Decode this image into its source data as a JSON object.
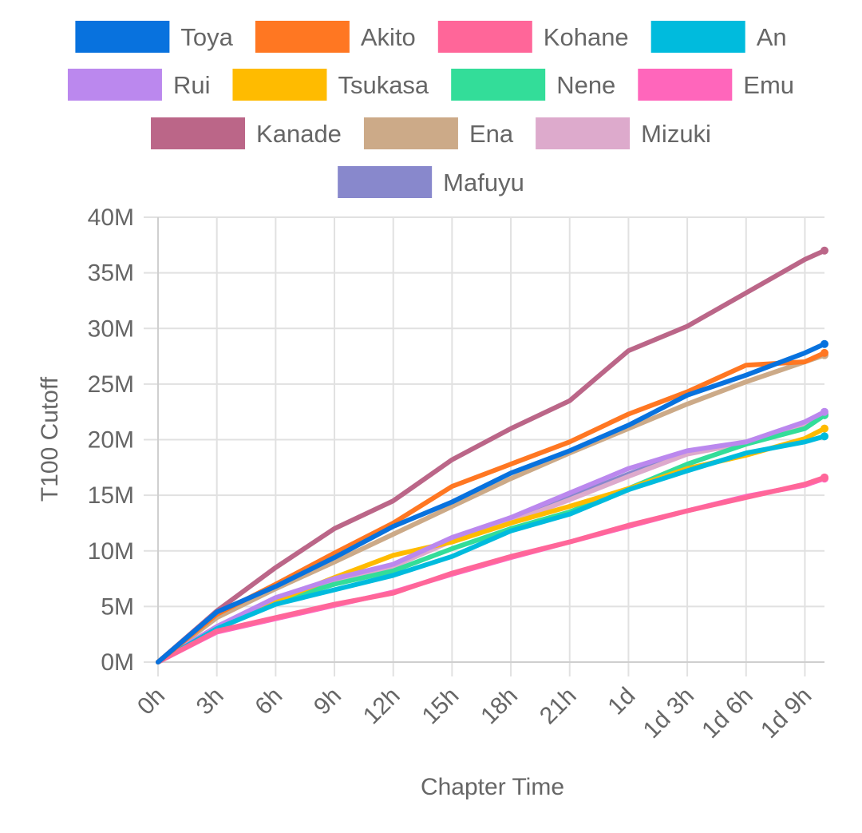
{
  "chart_data": {
    "type": "line",
    "xlabel": "Chapter Time",
    "ylabel": "T100 Cutoff",
    "x_unit": "hours",
    "xlim": [
      0,
      34
    ],
    "ylim": [
      0,
      40
    ],
    "y_unit": "M",
    "x_ticks": [
      {
        "value": 0,
        "label": "0h"
      },
      {
        "value": 3,
        "label": "3h"
      },
      {
        "value": 6,
        "label": "6h"
      },
      {
        "value": 9,
        "label": "9h"
      },
      {
        "value": 12,
        "label": "12h"
      },
      {
        "value": 15,
        "label": "15h"
      },
      {
        "value": 18,
        "label": "18h"
      },
      {
        "value": 21,
        "label": "21h"
      },
      {
        "value": 24,
        "label": "1d"
      },
      {
        "value": 27,
        "label": "1d 3h"
      },
      {
        "value": 30,
        "label": "1d 6h"
      },
      {
        "value": 33,
        "label": "1d 9h"
      }
    ],
    "y_ticks": [
      {
        "value": 0,
        "label": "0M"
      },
      {
        "value": 5,
        "label": "5M"
      },
      {
        "value": 10,
        "label": "10M"
      },
      {
        "value": 15,
        "label": "15M"
      },
      {
        "value": 20,
        "label": "20M"
      },
      {
        "value": 25,
        "label": "25M"
      },
      {
        "value": 30,
        "label": "30M"
      },
      {
        "value": 35,
        "label": "35M"
      },
      {
        "value": 40,
        "label": "40M"
      }
    ],
    "grid": true,
    "legend_position": "top",
    "series": [
      {
        "name": "Toya",
        "color": "#0872DE",
        "x": [
          0,
          3,
          6,
          9,
          12,
          15,
          18,
          21,
          24,
          27,
          30,
          33,
          34
        ],
        "values": [
          0,
          4.5,
          6.8,
          9.4,
          12.2,
          14.4,
          17.0,
          19.0,
          21.3,
          24.0,
          25.8,
          27.8,
          28.6
        ]
      },
      {
        "name": "Akito",
        "color": "#FF7722",
        "x": [
          0,
          3,
          6,
          9,
          12,
          15,
          18,
          21,
          24,
          27,
          30,
          33,
          34
        ],
        "values": [
          0,
          4.3,
          7.0,
          9.8,
          12.5,
          15.8,
          17.8,
          19.8,
          22.3,
          24.3,
          26.7,
          27.0,
          27.8
        ]
      },
      {
        "name": "Kohane",
        "color": "#FF6699",
        "x": [
          0,
          3,
          6,
          9,
          12,
          15,
          18,
          21,
          24,
          27,
          30,
          33,
          34
        ],
        "values": [
          0,
          2.8,
          4.0,
          5.2,
          6.2,
          8.0,
          9.5,
          10.8,
          12.3,
          13.6,
          14.8,
          16.0,
          16.6
        ]
      },
      {
        "name": "An",
        "color": "#00BBDD",
        "x": [
          0,
          3,
          6,
          9,
          12,
          15,
          18,
          21,
          24,
          27,
          30,
          33,
          34
        ],
        "values": [
          0,
          3.0,
          5.2,
          6.5,
          7.8,
          9.5,
          11.8,
          13.3,
          15.5,
          17.2,
          18.8,
          19.8,
          20.3
        ]
      },
      {
        "name": "Rui",
        "color": "#BB88EE",
        "x": [
          0,
          3,
          6,
          9,
          12,
          15,
          18,
          21,
          24,
          27,
          30,
          33,
          34
        ],
        "values": [
          0,
          3.2,
          5.8,
          7.5,
          8.8,
          11.2,
          13.0,
          15.2,
          17.4,
          19.0,
          19.8,
          21.6,
          22.5
        ]
      },
      {
        "name": "Tsukasa",
        "color": "#FFBB00",
        "x": [
          0,
          3,
          6,
          9,
          12,
          15,
          18,
          21,
          24,
          27,
          30,
          33,
          34
        ],
        "values": [
          0,
          3.1,
          5.5,
          7.6,
          9.6,
          10.8,
          12.5,
          14.0,
          15.6,
          17.4,
          18.6,
          20.1,
          21.0
        ]
      },
      {
        "name": "Nene",
        "color": "#33DD99",
        "x": [
          0,
          3,
          6,
          9,
          12,
          15,
          18,
          21,
          24,
          27,
          30,
          33,
          34
        ],
        "values": [
          0,
          3.0,
          5.4,
          7.0,
          8.2,
          10.2,
          12.0,
          13.5,
          15.6,
          17.8,
          19.6,
          21.0,
          22.2
        ]
      },
      {
        "name": "Emu",
        "color": "#FF66BB",
        "x": [
          0,
          3,
          6,
          9,
          12,
          15,
          18,
          21,
          24,
          27,
          30,
          33,
          34
        ],
        "values": [
          0,
          2.7,
          3.9,
          5.1,
          6.3,
          7.9,
          9.4,
          10.8,
          12.2,
          13.6,
          14.9,
          15.9,
          16.5
        ]
      },
      {
        "name": "Kanade",
        "color": "#BB6688",
        "x": [
          0,
          3,
          6,
          9,
          12,
          15,
          18,
          21,
          24,
          27,
          30,
          33,
          34
        ],
        "values": [
          0,
          4.6,
          8.5,
          12.0,
          14.5,
          18.2,
          21.0,
          23.5,
          28.0,
          30.2,
          33.2,
          36.2,
          37.0
        ]
      },
      {
        "name": "Ena",
        "color": "#CCAA88",
        "x": [
          0,
          3,
          6,
          9,
          12,
          15,
          18,
          21,
          24,
          27,
          30,
          33,
          34
        ],
        "values": [
          0,
          4.0,
          6.6,
          9.0,
          11.5,
          14.0,
          16.5,
          18.8,
          21.0,
          23.2,
          25.2,
          27.0,
          27.6
        ]
      },
      {
        "name": "Mizuki",
        "color": "#DDAACC",
        "x": [
          0,
          3,
          6,
          9,
          12,
          15,
          18,
          21,
          24,
          27,
          30,
          33,
          34
        ],
        "values": [
          0,
          3.0,
          5.3,
          7.2,
          8.6,
          10.9,
          12.6,
          14.6,
          16.7,
          18.7,
          19.7,
          21.3,
          22.2
        ]
      },
      {
        "name": "Mafuyu",
        "color": "#8888CC",
        "x": [
          0,
          3,
          6,
          9,
          12,
          15,
          18,
          21,
          24,
          27,
          30,
          33,
          34
        ],
        "values": [
          0,
          3.1,
          5.5,
          7.3,
          8.7,
          11.0,
          12.8,
          14.8,
          16.9,
          18.8,
          19.8,
          21.4,
          22.3
        ]
      }
    ]
  }
}
